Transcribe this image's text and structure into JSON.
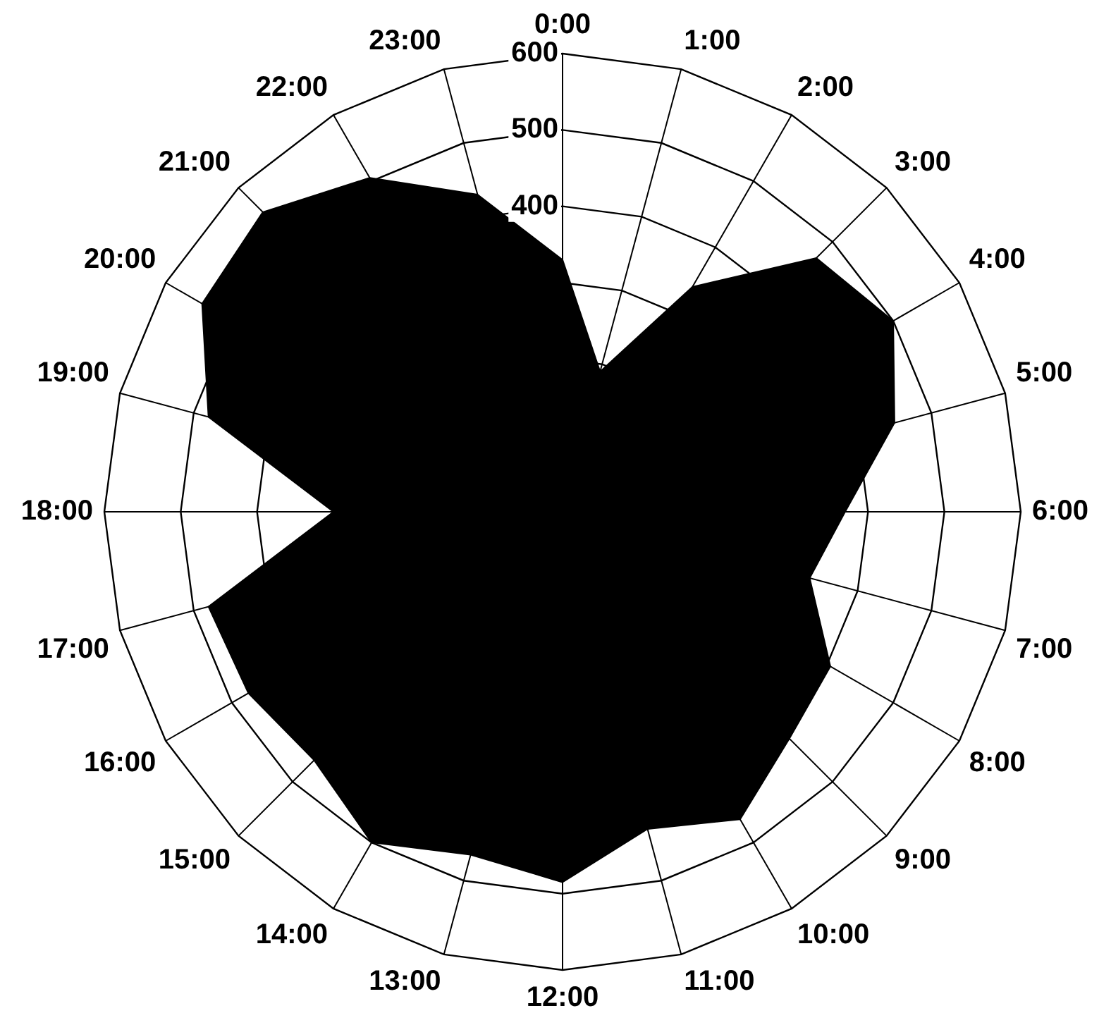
{
  "chart_data": {
    "type": "radar",
    "categories": [
      "0:00",
      "1:00",
      "2:00",
      "3:00",
      "4:00",
      "5:00",
      "6:00",
      "7:00",
      "8:00",
      "9:00",
      "10:00",
      "11:00",
      "12:00",
      "13:00",
      "14:00",
      "15:00",
      "16:00",
      "17:00",
      "18:00",
      "19:00",
      "20:00",
      "21:00",
      "22:00",
      "23:00"
    ],
    "series": [
      {
        "color": "#000000",
        "values": [
          330,
          190,
          340,
          470,
          500,
          450,
          370,
          335,
          405,
          420,
          465,
          430,
          485,
          465,
          500,
          460,
          475,
          480,
          300,
          480,
          545,
          555,
          505,
          430
        ]
      }
    ],
    "ylim": [
      0,
      600
    ],
    "yticks": [
      400,
      500,
      600
    ],
    "grid": true,
    "legend": false,
    "marker": "none"
  }
}
